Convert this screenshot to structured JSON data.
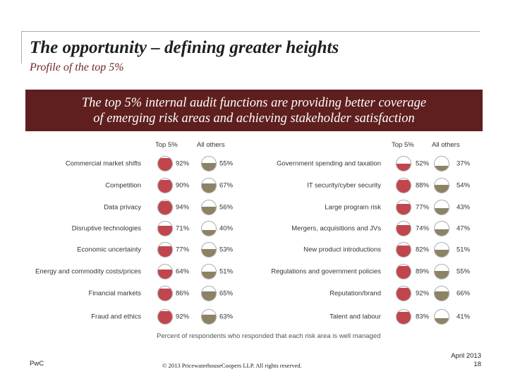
{
  "title": "The opportunity – defining greater heights",
  "subtitle": "Profile of the top 5%",
  "banner": {
    "line1": "The top 5% internal audit functions are providing better coverage",
    "line2": "of emerging risk areas and achieving stakeholder satisfaction"
  },
  "columns": {
    "top": "Top 5%",
    "others": "All others"
  },
  "colors": {
    "top": "#c0454d",
    "others": "#8c8366",
    "banner": "#5f1f1f"
  },
  "left_items": [
    {
      "label": "Commercial market shifts",
      "top": "92%",
      "others": "55%"
    },
    {
      "label": "Competition",
      "top": "90%",
      "others": "67%"
    },
    {
      "label": "Data privacy",
      "top": "94%",
      "others": "56%"
    },
    {
      "label": "Disruptive technologies",
      "top": "71%",
      "others": "40%"
    },
    {
      "label": "Economic uncertainty",
      "top": "77%",
      "others": "53%"
    },
    {
      "label": "Energy and commodity costs/prices",
      "top": "64%",
      "others": "51%"
    },
    {
      "label": "Financial markets",
      "top": "86%",
      "others": "65%"
    },
    {
      "label": "Fraud and ethics",
      "top": "92%",
      "others": "63%"
    }
  ],
  "right_items": [
    {
      "label": "Government spending and taxation",
      "top": "52%",
      "others": "37%"
    },
    {
      "label": "IT security/cyber security",
      "top": "88%",
      "others": "54%"
    },
    {
      "label": "Large program risk",
      "top": "77%",
      "others": "43%"
    },
    {
      "label": "Mergers, acquisitions and JVs",
      "top": "74%",
      "others": "47%"
    },
    {
      "label": "New product introductions",
      "top": "82%",
      "others": "51%"
    },
    {
      "label": "Regulations and government policies",
      "top": "89%",
      "others": "55%"
    },
    {
      "label": "Reputation/brand",
      "top": "92%",
      "others": "66%"
    },
    {
      "label": "Talent and labour",
      "top": "83%",
      "others": "41%"
    }
  ],
  "footnote": "Percent of respondents who responded that each risk area is well managed",
  "footer": {
    "brand": "PwC",
    "copyright": "© 2013 PricewaterhouseCoopers LLP. All rights reserved.",
    "date": "April 2013",
    "page": "18"
  }
}
